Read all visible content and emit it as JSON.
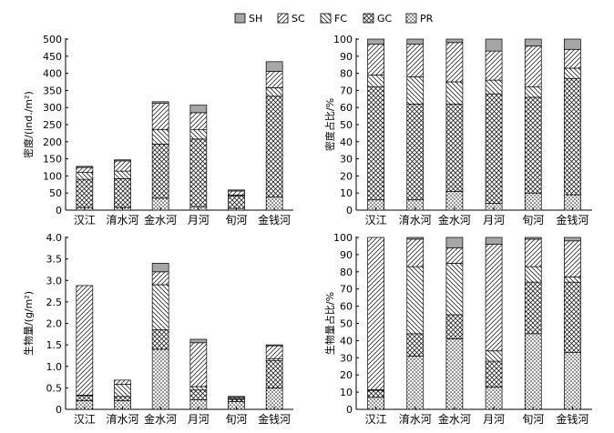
{
  "legend": {
    "items": [
      {
        "code": "SH",
        "pattern": "gray"
      },
      {
        "code": "SC",
        "pattern": "diag-up"
      },
      {
        "code": "FC",
        "pattern": "diag-down"
      },
      {
        "code": "GC",
        "pattern": "cross"
      },
      {
        "code": "PR",
        "pattern": "dots"
      }
    ]
  },
  "chart_data": [
    {
      "type": "bar",
      "stacked": true,
      "categories": [
        "汉江",
        "淯水河",
        "金水河",
        "月河",
        "旬河",
        "金钱河"
      ],
      "ylabel": "密度/(ind./m²)",
      "ylim": [
        0,
        500
      ],
      "yticks": [
        "0",
        "50",
        "100",
        "150",
        "200",
        "250",
        "300",
        "350",
        "400",
        "450",
        "500"
      ],
      "ytick_values": [
        0,
        50,
        100,
        150,
        200,
        250,
        300,
        350,
        400,
        450,
        500
      ],
      "series": [
        {
          "name": "PR",
          "values": [
            8,
            8,
            35,
            10,
            5,
            38
          ]
        },
        {
          "name": "GC",
          "values": [
            82,
            84,
            158,
            198,
            37,
            295
          ]
        },
        {
          "name": "FC",
          "values": [
            20,
            22,
            43,
            27,
            2,
            25
          ]
        },
        {
          "name": "SC",
          "values": [
            15,
            30,
            76,
            50,
            12,
            48
          ]
        },
        {
          "name": "SH",
          "values": [
            3,
            3,
            5,
            22,
            3,
            28
          ]
        }
      ]
    },
    {
      "type": "bar",
      "stacked": true,
      "categories": [
        "汉江",
        "淯水河",
        "金水河",
        "月河",
        "旬河",
        "金钱河"
      ],
      "ylabel": "密度占比/%",
      "ylim": [
        0,
        100
      ],
      "yticks": [
        "0",
        "10",
        "20",
        "30",
        "40",
        "50",
        "60",
        "70",
        "80",
        "90",
        "100"
      ],
      "ytick_values": [
        0,
        10,
        20,
        30,
        40,
        50,
        60,
        70,
        80,
        90,
        100
      ],
      "series": [
        {
          "name": "PR",
          "values": [
            6,
            6,
            11,
            4,
            10,
            9
          ]
        },
        {
          "name": "GC",
          "values": [
            66,
            56,
            51,
            64,
            56,
            68
          ]
        },
        {
          "name": "FC",
          "values": [
            7,
            16,
            13,
            8,
            6,
            6
          ]
        },
        {
          "name": "SC",
          "values": [
            18,
            19,
            23,
            17,
            24,
            11
          ]
        },
        {
          "name": "SH",
          "values": [
            3,
            3,
            2,
            7,
            4,
            6
          ]
        }
      ]
    },
    {
      "type": "bar",
      "stacked": true,
      "categories": [
        "汉江",
        "淯水河",
        "金水河",
        "月河",
        "旬河",
        "金钱河"
      ],
      "ylabel": "生物量/(g/m²)",
      "ylim": [
        0,
        4.0
      ],
      "yticks": [
        "0",
        "0.5",
        "1.0",
        "1.5",
        "2.0",
        "2.5",
        "3.0",
        "3.5",
        "4.0"
      ],
      "ytick_values": [
        0,
        0.5,
        1.0,
        1.5,
        2.0,
        2.5,
        3.0,
        3.5,
        4.0
      ],
      "series": [
        {
          "name": "PR",
          "values": [
            0.2,
            0.2,
            1.4,
            0.22,
            0.18,
            0.5
          ]
        },
        {
          "name": "GC",
          "values": [
            0.12,
            0.1,
            0.45,
            0.23,
            0.05,
            0.63
          ]
        },
        {
          "name": "FC",
          "values": [
            0.01,
            0.28,
            1.05,
            0.08,
            0.02,
            0.05
          ]
        },
        {
          "name": "SC",
          "values": [
            2.55,
            0.1,
            0.3,
            1.02,
            0.03,
            0.3
          ]
        },
        {
          "name": "SH",
          "values": [
            0.0,
            0.0,
            0.2,
            0.08,
            0.02,
            0.02
          ]
        }
      ]
    },
    {
      "type": "bar",
      "stacked": true,
      "categories": [
        "汉江",
        "淯水河",
        "金水河",
        "月河",
        "旬河",
        "金钱河"
      ],
      "ylabel": "生物量占比/%",
      "ylim": [
        0,
        100
      ],
      "yticks": [
        "0",
        "10",
        "20",
        "30",
        "40",
        "50",
        "60",
        "70",
        "80",
        "90",
        "100"
      ],
      "ytick_values": [
        0,
        10,
        20,
        30,
        40,
        50,
        60,
        70,
        80,
        90,
        100
      ],
      "series": [
        {
          "name": "PR",
          "values": [
            7,
            31,
            41,
            13,
            44,
            33
          ]
        },
        {
          "name": "GC",
          "values": [
            4,
            13,
            14,
            15,
            30,
            41
          ]
        },
        {
          "name": "FC",
          "values": [
            0.5,
            39,
            30,
            6,
            9,
            3
          ]
        },
        {
          "name": "SC",
          "values": [
            88.5,
            16,
            9,
            62,
            16,
            21
          ]
        },
        {
          "name": "SH",
          "values": [
            0,
            1,
            6,
            4,
            1,
            2
          ]
        }
      ]
    }
  ]
}
